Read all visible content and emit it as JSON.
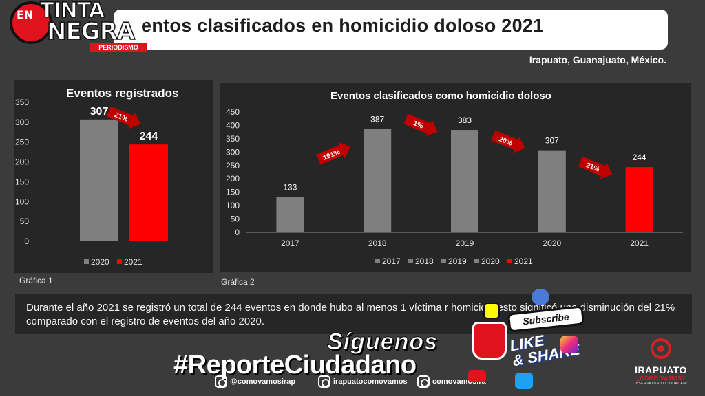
{
  "header": {
    "title": "entos clasificados en homicidio doloso 2021",
    "location": "Irapuato, Guanajuato, México."
  },
  "logo": {
    "en": "EN",
    "tinta": "TINTA",
    "negra": "NEGRA",
    "periodismo": "PERIODISMO",
    "reg": "®"
  },
  "chart_data": [
    {
      "type": "bar",
      "title": "Eventos registrados",
      "categories": [
        "2020",
        "2021"
      ],
      "values": [
        307,
        244
      ],
      "colors": [
        "#7f7f7f",
        "#ff0000"
      ],
      "ylim": [
        0,
        350
      ],
      "yticks": [
        "0",
        "50",
        "100",
        "150",
        "200",
        "250",
        "300",
        "350"
      ],
      "legend": [
        "2020",
        "2021"
      ],
      "legend_position": "bottom",
      "annotations": [
        {
          "text": "21%",
          "between": [
            "2020",
            "2021"
          ],
          "direction": "down"
        }
      ],
      "caption": "Gráfica 1"
    },
    {
      "type": "bar",
      "title": "Eventos clasificados como homicidio doloso",
      "categories": [
        "2017",
        "2018",
        "2019",
        "2020",
        "2021"
      ],
      "values": [
        133,
        387,
        383,
        307,
        244
      ],
      "colors": [
        "#7f7f7f",
        "#7f7f7f",
        "#7f7f7f",
        "#7f7f7f",
        "#ff0000"
      ],
      "ylim": [
        0,
        450
      ],
      "yticks": [
        "0",
        "50",
        "100",
        "150",
        "200",
        "250",
        "300",
        "350",
        "400",
        "450"
      ],
      "legend": [
        "2017",
        "2018",
        "2019",
        "2020",
        "2021"
      ],
      "legend_position": "bottom",
      "annotations": [
        {
          "text": "191%",
          "between": [
            "2017",
            "2018"
          ],
          "direction": "up"
        },
        {
          "text": "1%",
          "between": [
            "2018",
            "2019"
          ],
          "direction": "down"
        },
        {
          "text": "20%",
          "between": [
            "2019",
            "2020"
          ],
          "direction": "down"
        },
        {
          "text": "21%",
          "between": [
            "2020",
            "2021"
          ],
          "direction": "down"
        }
      ],
      "caption": "Gráfica 2"
    }
  ],
  "description": "Durante el año 2021 se registró un total de 244 eventos en donde hubo al menos 1 víctima r homicidi , esto significó una disminución del 21% comparado con el registro de eventos del año 2020.",
  "footer": {
    "siguenos": "Síguenos",
    "hashtag": "#ReporteCiudadano",
    "social": [
      {
        "handle": "@comovamosirap",
        "icon": "twitter-icon"
      },
      {
        "handle": "irapuatocomovamos",
        "icon": "facebook-icon"
      },
      {
        "handle": "comovamosira",
        "icon": "instagram-icon"
      }
    ],
    "subscribe": "Subscribe",
    "like": "LIKE",
    "share": "& SHARE"
  },
  "org_logo": {
    "name": "IRAPUATO",
    "tagline": "¿CÓMO VAMOS?",
    "sub": "OBSERVATORIO CIUDADANO"
  }
}
